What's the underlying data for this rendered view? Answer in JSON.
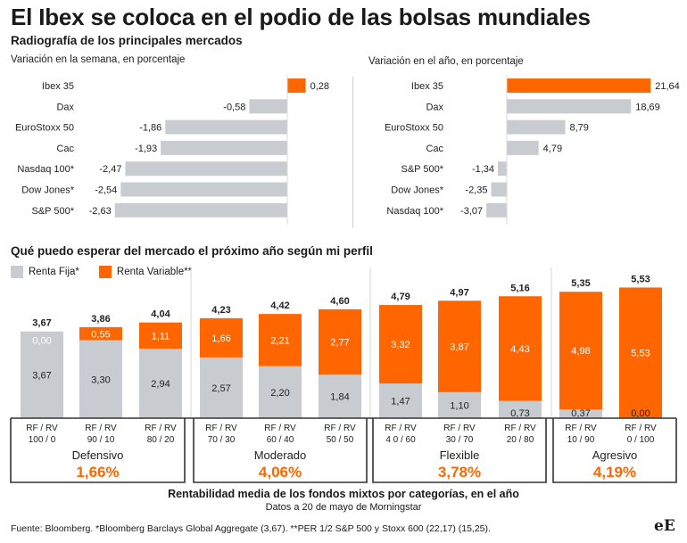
{
  "title": "El Ibex se coloca en el podio de las bolsas mundiales",
  "subtitle": "Radiografía de los principales mercados",
  "colors": {
    "orange": "#ff6600",
    "gray": "#c8ccd1",
    "dark": "#222222"
  },
  "chart_data": [
    {
      "type": "bar",
      "orientation": "horizontal",
      "title": "Variación en la semana, en porcentaje",
      "categories": [
        "Ibex 35",
        "Dax",
        "EuroStoxx 50",
        "Cac",
        "Nasdaq 100*",
        "Dow Jones*",
        "S&P 500*"
      ],
      "values": [
        0.28,
        -0.58,
        -1.86,
        -1.93,
        -2.47,
        -2.54,
        -2.63
      ],
      "value_labels": [
        "0,28",
        "-0,58",
        "-1,86",
        "-1,93",
        "-2,47",
        "-2,54",
        "-2,63"
      ],
      "highlight": "Ibex 35"
    },
    {
      "type": "bar",
      "orientation": "horizontal",
      "title": "Variación en el año, en porcentaje",
      "categories": [
        "Ibex 35",
        "Dax",
        "EuroStoxx 50",
        "Cac",
        "S&P 500*",
        "Dow Jones*",
        "Nasdaq 100*"
      ],
      "values": [
        21.64,
        18.69,
        8.79,
        4.79,
        -1.34,
        -2.35,
        -3.07
      ],
      "value_labels": [
        "21,64",
        "18,69",
        "8,79",
        "4,79",
        "-1,34",
        "-2,35",
        "-3,07"
      ],
      "highlight": "Ibex 35"
    },
    {
      "type": "bar",
      "stacked": true,
      "title": "Qué puedo esperar del mercado el próximo año según mi perfil",
      "legend": [
        "Renta Fija*",
        "Renta Variable**"
      ],
      "legend_position": "top-left",
      "categories": [
        "RF / RV 100 / 0",
        "RF / RV 90 / 10",
        "RF / RV 80 / 20",
        "RF / RV 70 / 30",
        "RF / RV 60 / 40",
        "RF / RV 50 / 50",
        "RF / RV 4 0 / 60",
        "RF / RV 30 / 70",
        "RF / RV 20 / 80",
        "RF / RV 10 / 90",
        "RF / RV 0 / 100"
      ],
      "category_lines": [
        [
          "RF / RV",
          "100 / 0"
        ],
        [
          "RF / RV",
          "90 / 10"
        ],
        [
          "RF / RV",
          "80 / 20"
        ],
        [
          "RF / RV",
          "70 / 30"
        ],
        [
          "RF / RV",
          "60 / 40"
        ],
        [
          "RF / RV",
          "50 / 50"
        ],
        [
          "RF / RV",
          "4 0 / 60"
        ],
        [
          "RF / RV",
          "30 / 70"
        ],
        [
          "RF / RV",
          "20 / 80"
        ],
        [
          "RF / RV",
          "10 / 90"
        ],
        [
          "RF / RV",
          "0 / 100"
        ]
      ],
      "series": [
        {
          "name": "Renta Fija*",
          "values": [
            3.67,
            3.3,
            2.94,
            2.57,
            2.2,
            1.84,
            1.47,
            1.1,
            0.73,
            0.37,
            0.0
          ],
          "labels": [
            "3,67",
            "3,30",
            "2,94",
            "2,57",
            "2,20",
            "1,84",
            "1,47",
            "1,10",
            "0,73",
            "0,37",
            "0,00"
          ]
        },
        {
          "name": "Renta Variable**",
          "values": [
            0.0,
            0.55,
            1.11,
            1.66,
            2.21,
            2.77,
            3.32,
            3.87,
            4.43,
            4.98,
            5.53
          ],
          "labels": [
            "0,00",
            "0,55",
            "1,11",
            "1,66",
            "2,21",
            "2,77",
            "3,32",
            "3,87",
            "4,43",
            "4,98",
            "5,53"
          ]
        }
      ],
      "totals": [
        3.67,
        3.86,
        4.04,
        4.23,
        4.42,
        4.6,
        4.79,
        4.97,
        5.16,
        5.35,
        5.53
      ],
      "total_labels": [
        "3,67",
        "3,86",
        "4,04",
        "4,23",
        "4,42",
        "4,60",
        "4,79",
        "4,97",
        "5,16",
        "5,35",
        "5,53"
      ],
      "groups": [
        {
          "name": "Defensivo",
          "value": "1,66%",
          "count": 3
        },
        {
          "name": "Moderado",
          "value": "4,06%",
          "count": 3
        },
        {
          "name": "Flexible",
          "value": "3,78%",
          "count": 3
        },
        {
          "name": "Agresivo",
          "value": "4,19%",
          "count": 2
        }
      ]
    }
  ],
  "caption": "Rentabilidad media de los fondos mixtos por categorías, en el año",
  "caption_sub": "Datos a 20 de mayo de Morningstar",
  "source": "Fuente: Bloomberg. *Bloomberg Barclays Global Aggregate (3,67). **PER 1/2 S&P 500 y Stoxx 600 (22,17) (15,25).",
  "logo": "eE"
}
